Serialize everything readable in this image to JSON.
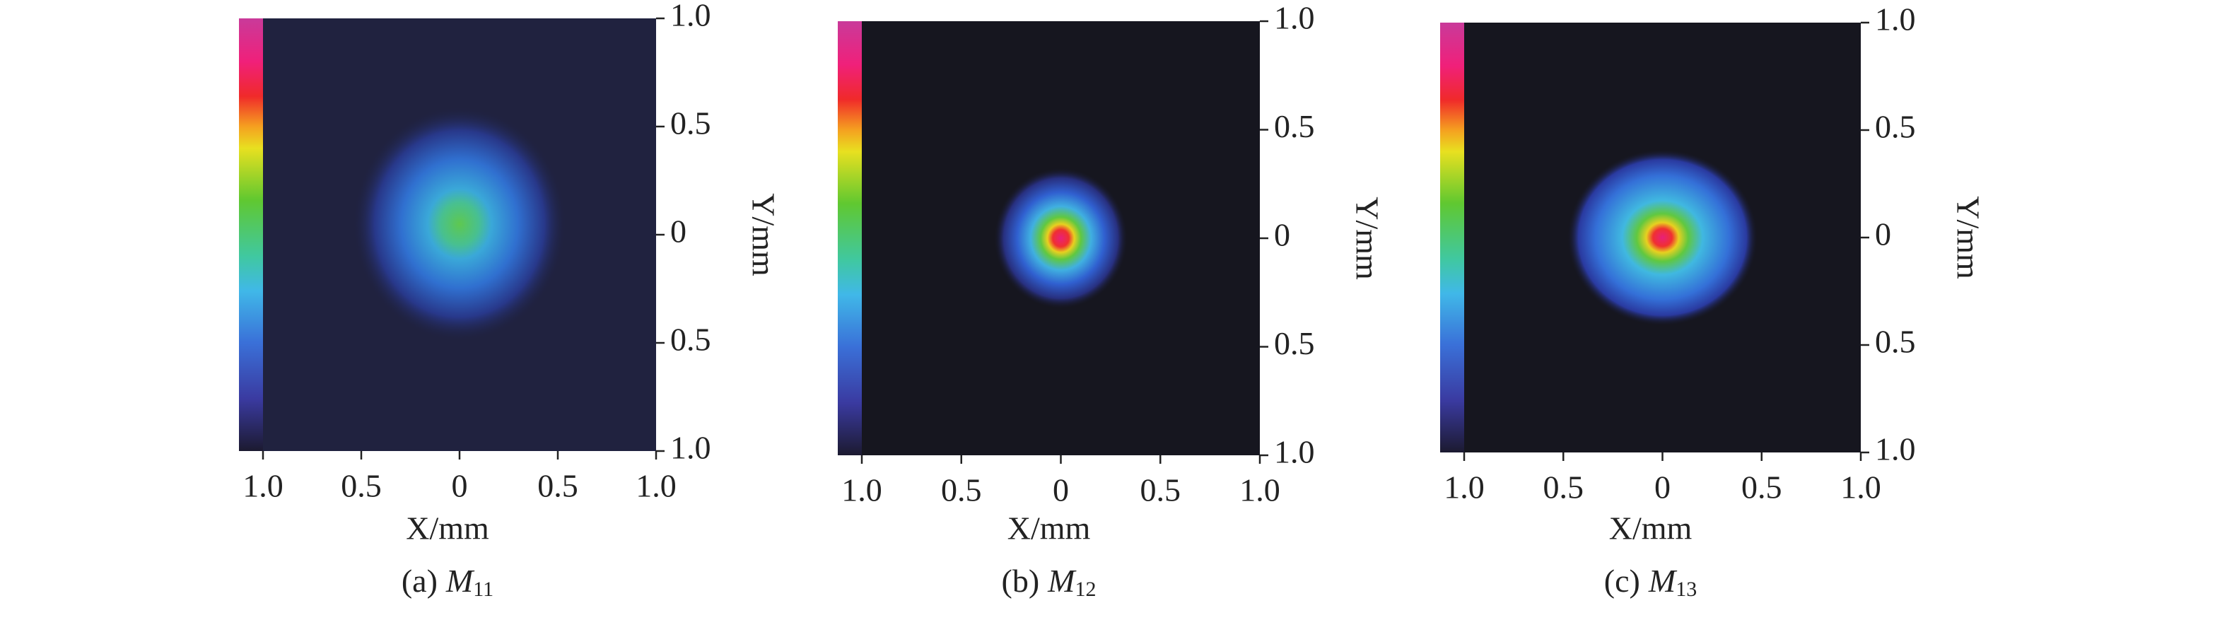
{
  "chart_data": [
    {
      "type": "heatmap",
      "xlabel": "X/mm",
      "ylabel": "Y/mm",
      "caption_prefix": "(a)",
      "caption_symbol": "M",
      "caption_subscript": "11",
      "xlim": [
        -1,
        1
      ],
      "ylim": [
        -1,
        1
      ],
      "xticks": [
        {
          "value": -1,
          "label": "1.0"
        },
        {
          "value": -0.5,
          "label": "0.5"
        },
        0,
        0.5,
        {
          "value": 1,
          "label": "1.0"
        }
      ],
      "yticks": [
        {
          "value": -1,
          "label": "1.0"
        },
        {
          "value": -0.5,
          "label": "0.5"
        },
        0,
        0.5,
        {
          "value": 1,
          "label": "1.0"
        }
      ]
    },
    {
      "type": "heatmap",
      "xlabel": "X/mm",
      "ylabel": "Y/mm",
      "caption_prefix": "(b)",
      "caption_symbol": "M",
      "caption_subscript": "12",
      "xlim": [
        -1,
        1
      ],
      "ylim": [
        -1,
        1
      ],
      "xticks": [
        {
          "value": -1,
          "label": "1.0"
        },
        {
          "value": -0.5,
          "label": "0.5"
        },
        0,
        0.5,
        {
          "value": 1,
          "label": "1.0"
        }
      ],
      "yticks": [
        {
          "value": -1,
          "label": "1.0"
        },
        {
          "value": -0.5,
          "label": "0.5"
        },
        0,
        0.5,
        {
          "value": 1,
          "label": "1.0"
        }
      ]
    },
    {
      "type": "heatmap",
      "xlabel": "X/mm",
      "ylabel": "Y/mm",
      "caption_prefix": "(c)",
      "caption_symbol": "M",
      "caption_subscript": "13",
      "xlim": [
        -1,
        1
      ],
      "ylim": [
        -1,
        1
      ],
      "xticks": [
        {
          "value": -1,
          "label": "1.0"
        },
        {
          "value": -0.5,
          "label": "0.5"
        },
        0,
        0.5,
        {
          "value": 1,
          "label": "1.0"
        }
      ],
      "yticks": [
        {
          "value": -1,
          "label": "1.0"
        },
        {
          "value": -0.5,
          "label": "0.5"
        },
        0,
        0.5,
        {
          "value": 1,
          "label": "1.0"
        }
      ]
    }
  ]
}
